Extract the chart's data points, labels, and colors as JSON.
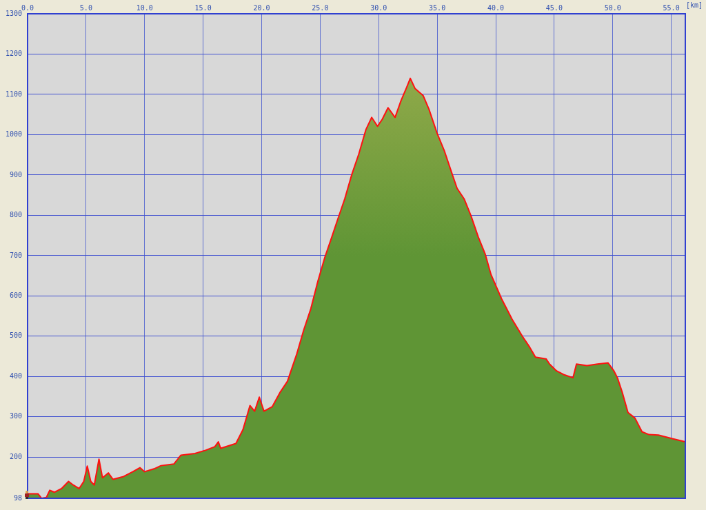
{
  "chart_data": {
    "type": "area",
    "xlabel": "[km]",
    "x": [
      0,
      0.9,
      1.2,
      1.6,
      1.9,
      2.3,
      2.9,
      3.5,
      3.9,
      4.4,
      4.8,
      5.1,
      5.4,
      5.7,
      6.1,
      6.4,
      6.9,
      7.3,
      8.2,
      9.0,
      9.6,
      10.0,
      10.8,
      11.4,
      12.5,
      13.1,
      14.3,
      15.2,
      16.0,
      16.3,
      16.5,
      17.8,
      18.4,
      19.0,
      19.4,
      19.8,
      20.2,
      20.9,
      21.6,
      22.2,
      23.0,
      23.6,
      24.2,
      24.8,
      25.4,
      25.9,
      26.5,
      27.1,
      27.7,
      28.3,
      28.9,
      29.4,
      29.9,
      30.3,
      30.8,
      31.4,
      31.9,
      32.4,
      32.7,
      33.1,
      33.8,
      34.3,
      35.0,
      35.6,
      36.2,
      36.7,
      37.3,
      37.9,
      38.5,
      39.1,
      39.6,
      40.5,
      41.4,
      42.3,
      42.9,
      43.4,
      44.3,
      44.6,
      45.2,
      45.8,
      46.6,
      46.9,
      47.8,
      48.7,
      49.6,
      50.1,
      50.4,
      50.8,
      51.3,
      51.9,
      52.5,
      53.1,
      53.9,
      55.1,
      56.2
    ],
    "series": [
      {
        "color": "#5f9535",
        "values": [
          109,
          109,
          98,
          100,
          118,
          113,
          122,
          140,
          131,
          122,
          140,
          178,
          140,
          131,
          195,
          149,
          161,
          145,
          152,
          164,
          174,
          164,
          171,
          179,
          183,
          205,
          209,
          217,
          226,
          238,
          222,
          234,
          268,
          328,
          314,
          349,
          314,
          325,
          362,
          388,
          456,
          516,
          568,
          636,
          696,
          738,
          790,
          841,
          901,
          952,
          1012,
          1043,
          1021,
          1038,
          1067,
          1043,
          1084,
          1118,
          1140,
          1115,
          1097,
          1063,
          1003,
          961,
          909,
          867,
          841,
          798,
          747,
          704,
          653,
          593,
          542,
          499,
          473,
          448,
          444,
          431,
          414,
          405,
          397,
          431,
          427,
          431,
          434,
          414,
          397,
          362,
          311,
          297,
          263,
          256,
          255,
          246,
          238
        ]
      }
    ],
    "xlim": [
      0,
      56.2
    ],
    "xticks": [
      {
        "value": 0,
        "label": "0.0"
      },
      {
        "value": 5,
        "label": "5.0"
      },
      {
        "value": 10,
        "label": "10.0"
      },
      {
        "value": 15,
        "label": "15.0"
      },
      {
        "value": 20,
        "label": "20.0"
      },
      {
        "value": 25,
        "label": "25.0"
      },
      {
        "value": 30,
        "label": "30.0"
      },
      {
        "value": 35,
        "label": "35.0"
      },
      {
        "value": 40,
        "label": "40.0"
      },
      {
        "value": 45,
        "label": "45.0"
      },
      {
        "value": 50,
        "label": "50.0"
      },
      {
        "value": 55,
        "label": "55.0"
      }
    ],
    "ylim": [
      98,
      1300
    ],
    "yticks": [
      98,
      200,
      300,
      400,
      500,
      600,
      700,
      800,
      900,
      1000,
      1100,
      1200,
      1300
    ],
    "grid": true,
    "legend": false,
    "marker": "none",
    "line_style": "solid"
  }
}
